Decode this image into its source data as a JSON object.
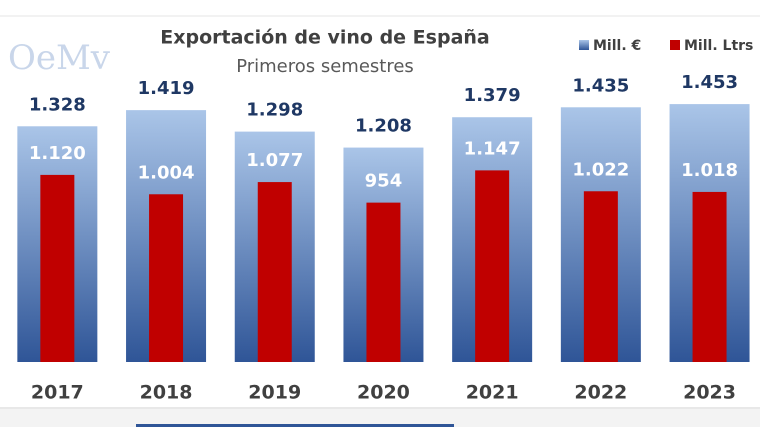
{
  "chart_data": {
    "type": "bar",
    "title": "Exportación de vino de España",
    "subtitle": "Primeros semestres",
    "logo": "OeMv",
    "categories": [
      "2017",
      "2018",
      "2019",
      "2020",
      "2021",
      "2022",
      "2023"
    ],
    "series": [
      {
        "name": "Mill. €",
        "color": "#2f5597",
        "values": [
          1328,
          1419,
          1298,
          1208,
          1379,
          1435,
          1453
        ],
        "value_labels": [
          "1.328",
          "1.419",
          "1.298",
          "1.208",
          "1.379",
          "1.435",
          "1.453"
        ]
      },
      {
        "name": "Mill. Ltrs",
        "color": "#c00000",
        "axis": "y2",
        "values": [
          1120,
          1004,
          1077,
          954,
          1147,
          1022,
          1018
        ],
        "value_labels": [
          "1.120",
          "1.004",
          "1.077",
          "954",
          "1.147",
          "1.022",
          "1.018"
        ]
      }
    ],
    "ylim": [
      0,
      1600
    ],
    "y2lim": [
      0,
      1700
    ],
    "grid": false
  }
}
